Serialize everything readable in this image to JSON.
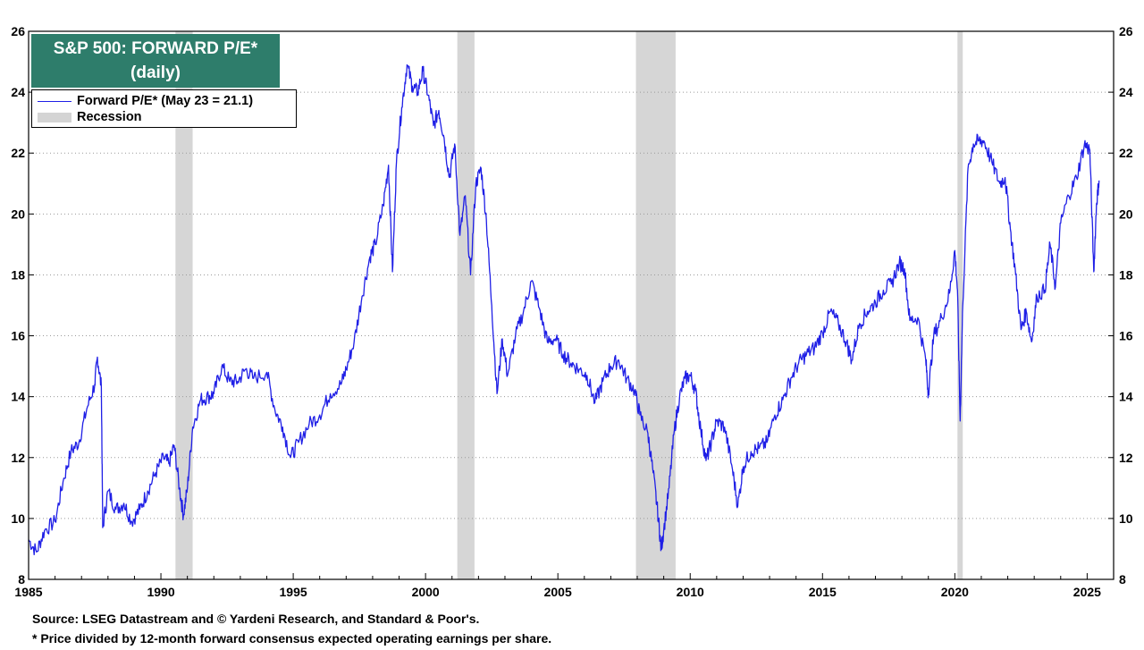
{
  "chart_data": {
    "type": "line",
    "title": "S&P 500: FORWARD P/E*",
    "subtitle": "(daily)",
    "xlabel": "",
    "ylabel": "",
    "xlim": [
      1985,
      2026
    ],
    "ylim": [
      8,
      26
    ],
    "x_ticks": [
      1985,
      1990,
      1995,
      2000,
      2005,
      2010,
      2015,
      2020,
      2025
    ],
    "y_ticks": [
      8,
      10,
      12,
      14,
      16,
      18,
      20,
      22,
      24,
      26
    ],
    "legend": {
      "placement": "top-left",
      "series_label": "Forward P/E* (May 23 = 21.1)",
      "recession_label": "Recession"
    },
    "recessions": [
      {
        "start": 1990.55,
        "end": 1991.2
      },
      {
        "start": 2001.2,
        "end": 2001.85
      },
      {
        "start": 2007.95,
        "end": 2009.45
      },
      {
        "start": 2020.1,
        "end": 2020.3
      }
    ],
    "series": [
      {
        "name": "Forward P/E*",
        "color": "#1f1fe6",
        "points": [
          [
            1985.0,
            9.3
          ],
          [
            1985.3,
            8.9
          ],
          [
            1985.6,
            9.6
          ],
          [
            1986.0,
            9.9
          ],
          [
            1986.3,
            11.2
          ],
          [
            1986.6,
            12.2
          ],
          [
            1986.9,
            12.5
          ],
          [
            1987.2,
            13.6
          ],
          [
            1987.5,
            14.4
          ],
          [
            1987.6,
            15.3
          ],
          [
            1987.75,
            14.3
          ],
          [
            1987.8,
            9.7
          ],
          [
            1988.0,
            10.9
          ],
          [
            1988.3,
            10.3
          ],
          [
            1988.6,
            10.5
          ],
          [
            1988.9,
            9.9
          ],
          [
            1989.2,
            10.3
          ],
          [
            1989.5,
            10.9
          ],
          [
            1989.8,
            11.5
          ],
          [
            1990.1,
            12.0
          ],
          [
            1990.3,
            11.8
          ],
          [
            1990.5,
            12.4
          ],
          [
            1990.7,
            11.0
          ],
          [
            1990.85,
            10.1
          ],
          [
            1991.0,
            11.0
          ],
          [
            1991.2,
            13.0
          ],
          [
            1991.5,
            13.9
          ],
          [
            1991.8,
            14.0
          ],
          [
            1992.0,
            14.1
          ],
          [
            1992.3,
            15.0
          ],
          [
            1992.6,
            14.5
          ],
          [
            1992.9,
            14.5
          ],
          [
            1993.2,
            14.9
          ],
          [
            1993.5,
            14.6
          ],
          [
            1994.0,
            14.8
          ],
          [
            1994.3,
            13.6
          ],
          [
            1994.6,
            13.0
          ],
          [
            1994.9,
            12.0
          ],
          [
            1995.2,
            12.5
          ],
          [
            1995.6,
            13.1
          ],
          [
            1996.0,
            13.4
          ],
          [
            1996.4,
            14.1
          ],
          [
            1996.8,
            14.4
          ],
          [
            1997.0,
            14.9
          ],
          [
            1997.3,
            15.8
          ],
          [
            1997.6,
            17.3
          ],
          [
            1997.9,
            18.6
          ],
          [
            1998.1,
            19.0
          ],
          [
            1998.4,
            20.3
          ],
          [
            1998.6,
            21.6
          ],
          [
            1998.75,
            18.1
          ],
          [
            1998.9,
            21.7
          ],
          [
            1999.1,
            23.5
          ],
          [
            1999.3,
            24.9
          ],
          [
            1999.5,
            24.2
          ],
          [
            1999.7,
            24.0
          ],
          [
            1999.9,
            24.7
          ],
          [
            2000.1,
            23.9
          ],
          [
            2000.3,
            22.9
          ],
          [
            2000.5,
            23.4
          ],
          [
            2000.7,
            22.5
          ],
          [
            2000.9,
            21.2
          ],
          [
            2001.1,
            22.3
          ],
          [
            2001.3,
            19.3
          ],
          [
            2001.5,
            20.6
          ],
          [
            2001.7,
            18.0
          ],
          [
            2001.9,
            21.0
          ],
          [
            2002.1,
            21.5
          ],
          [
            2002.3,
            19.8
          ],
          [
            2002.5,
            17.0
          ],
          [
            2002.7,
            14.1
          ],
          [
            2002.9,
            15.9
          ],
          [
            2003.1,
            14.7
          ],
          [
            2003.4,
            16.0
          ],
          [
            2003.7,
            16.8
          ],
          [
            2004.0,
            17.8
          ],
          [
            2004.3,
            16.9
          ],
          [
            2004.6,
            15.8
          ],
          [
            2004.9,
            15.9
          ],
          [
            2005.2,
            15.4
          ],
          [
            2005.5,
            15.1
          ],
          [
            2005.8,
            14.9
          ],
          [
            2006.1,
            14.7
          ],
          [
            2006.4,
            13.8
          ],
          [
            2006.7,
            14.5
          ],
          [
            2007.0,
            15.0
          ],
          [
            2007.3,
            15.2
          ],
          [
            2007.6,
            14.6
          ],
          [
            2007.9,
            14.2
          ],
          [
            2008.1,
            13.4
          ],
          [
            2008.4,
            12.8
          ],
          [
            2008.6,
            11.5
          ],
          [
            2008.8,
            10.0
          ],
          [
            2008.9,
            9.0
          ],
          [
            2009.0,
            9.6
          ],
          [
            2009.2,
            11.0
          ],
          [
            2009.4,
            12.9
          ],
          [
            2009.6,
            14.0
          ],
          [
            2009.8,
            14.6
          ],
          [
            2010.0,
            14.7
          ],
          [
            2010.2,
            14.2
          ],
          [
            2010.4,
            12.9
          ],
          [
            2010.6,
            11.9
          ],
          [
            2010.8,
            12.5
          ],
          [
            2011.0,
            13.2
          ],
          [
            2011.3,
            13.0
          ],
          [
            2011.6,
            11.6
          ],
          [
            2011.8,
            10.4
          ],
          [
            2012.0,
            11.7
          ],
          [
            2012.3,
            12.2
          ],
          [
            2012.6,
            12.3
          ],
          [
            2012.9,
            12.5
          ],
          [
            2013.2,
            13.4
          ],
          [
            2013.5,
            13.9
          ],
          [
            2013.8,
            14.6
          ],
          [
            2014.1,
            15.1
          ],
          [
            2014.4,
            15.4
          ],
          [
            2014.7,
            15.6
          ],
          [
            2015.0,
            16.1
          ],
          [
            2015.3,
            16.8
          ],
          [
            2015.6,
            16.4
          ],
          [
            2015.9,
            15.8
          ],
          [
            2016.1,
            15.2
          ],
          [
            2016.4,
            16.4
          ],
          [
            2016.7,
            16.8
          ],
          [
            2017.0,
            17.1
          ],
          [
            2017.3,
            17.5
          ],
          [
            2017.6,
            17.7
          ],
          [
            2017.9,
            18.4
          ],
          [
            2018.1,
            18.2
          ],
          [
            2018.3,
            16.5
          ],
          [
            2018.6,
            16.6
          ],
          [
            2018.9,
            15.2
          ],
          [
            2019.0,
            14.1
          ],
          [
            2019.2,
            16.0
          ],
          [
            2019.5,
            16.6
          ],
          [
            2019.8,
            17.4
          ],
          [
            2020.0,
            18.8
          ],
          [
            2020.1,
            17.5
          ],
          [
            2020.2,
            13.2
          ],
          [
            2020.3,
            17.0
          ],
          [
            2020.5,
            21.5
          ],
          [
            2020.7,
            22.3
          ],
          [
            2020.9,
            22.4
          ],
          [
            2021.1,
            22.4
          ],
          [
            2021.4,
            21.7
          ],
          [
            2021.7,
            21.0
          ],
          [
            2021.9,
            21.2
          ],
          [
            2022.1,
            19.5
          ],
          [
            2022.3,
            18.0
          ],
          [
            2022.5,
            16.2
          ],
          [
            2022.7,
            16.8
          ],
          [
            2022.9,
            15.8
          ],
          [
            2023.1,
            17.3
          ],
          [
            2023.4,
            17.5
          ],
          [
            2023.6,
            19.0
          ],
          [
            2023.8,
            17.6
          ],
          [
            2024.0,
            19.7
          ],
          [
            2024.3,
            20.6
          ],
          [
            2024.6,
            21.2
          ],
          [
            2024.9,
            22.3
          ],
          [
            2025.1,
            22.1
          ],
          [
            2025.25,
            18.1
          ],
          [
            2025.35,
            20.3
          ],
          [
            2025.45,
            21.1
          ]
        ]
      }
    ]
  },
  "footer": {
    "source": "Source: LSEG Datastream and © Yardeni Research, and Standard & Poor's.",
    "note": "* Price divided by 12-month forward consensus expected operating earnings per share."
  }
}
